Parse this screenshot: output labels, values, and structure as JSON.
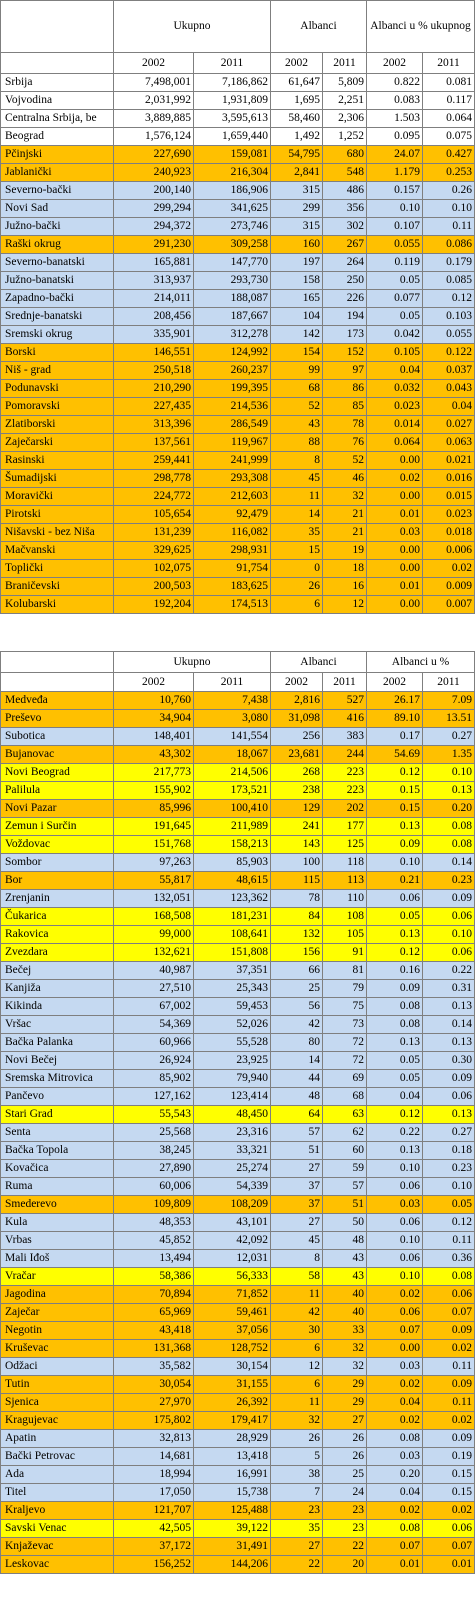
{
  "header": {
    "total": "Ukupno",
    "albanians": "Albanci",
    "share": "Albanci u % ukupnog",
    "share_short": "Albanci u %",
    "years": [
      "2002",
      "2011",
      "2002",
      "2011",
      "2002",
      "2011"
    ]
  },
  "table1": {
    "rows": [
      {
        "name": "Srbija",
        "t02": "7,498,001",
        "t11": "7,186,862",
        "a02": "61,647",
        "a11": "5,809",
        "p02": "0.822",
        "p11": "0.081",
        "color": "white"
      },
      {
        "name": "Vojvodina",
        "t02": "2,031,992",
        "t11": "1,931,809",
        "a02": "1,695",
        "a11": "2,251",
        "p02": "0.083",
        "p11": "0.117",
        "color": "white"
      },
      {
        "name": "Centralna Srbija, be",
        "t02": "3,889,885",
        "t11": "3,595,613",
        "a02": "58,460",
        "a11": "2,306",
        "p02": "1.503",
        "p11": "0.064",
        "color": "white"
      },
      {
        "name": "Beograd",
        "t02": "1,576,124",
        "t11": "1,659,440",
        "a02": "1,492",
        "a11": "1,252",
        "p02": "0.095",
        "p11": "0.075",
        "color": "white"
      },
      {
        "name": "Pčinjski",
        "t02": "227,690",
        "t11": "159,081",
        "a02": "54,795",
        "a11": "680",
        "p02": "24.07",
        "p11": "0.427",
        "color": "orange"
      },
      {
        "name": "Jablanički",
        "t02": "240,923",
        "t11": "216,304",
        "a02": "2,841",
        "a11": "548",
        "p02": "1.179",
        "p11": "0.253",
        "color": "orange"
      },
      {
        "name": "Severno-bački",
        "t02": "200,140",
        "t11": "186,906",
        "a02": "315",
        "a11": "486",
        "p02": "0.157",
        "p11": "0.26",
        "color": "blue"
      },
      {
        "name": "Novi Sad",
        "t02": "299,294",
        "t11": "341,625",
        "a02": "299",
        "a11": "356",
        "p02": "0.10",
        "p11": "0.10",
        "color": "blue"
      },
      {
        "name": "Južno-bački",
        "t02": "294,372",
        "t11": "273,746",
        "a02": "315",
        "a11": "302",
        "p02": "0.107",
        "p11": "0.11",
        "color": "blue"
      },
      {
        "name": "Raški okrug",
        "t02": "291,230",
        "t11": "309,258",
        "a02": "160",
        "a11": "267",
        "p02": "0.055",
        "p11": "0.086",
        "color": "orange"
      },
      {
        "name": "Severno-banatski",
        "t02": "165,881",
        "t11": "147,770",
        "a02": "197",
        "a11": "264",
        "p02": "0.119",
        "p11": "0.179",
        "color": "blue"
      },
      {
        "name": "Južno-banatski",
        "t02": "313,937",
        "t11": "293,730",
        "a02": "158",
        "a11": "250",
        "p02": "0.05",
        "p11": "0.085",
        "color": "blue"
      },
      {
        "name": "Zapadno-bački",
        "t02": "214,011",
        "t11": "188,087",
        "a02": "165",
        "a11": "226",
        "p02": "0.077",
        "p11": "0.12",
        "color": "blue"
      },
      {
        "name": "Srednje-banatski",
        "t02": "208,456",
        "t11": "187,667",
        "a02": "104",
        "a11": "194",
        "p02": "0.05",
        "p11": "0.103",
        "color": "blue"
      },
      {
        "name": "Sremski okrug",
        "t02": "335,901",
        "t11": "312,278",
        "a02": "142",
        "a11": "173",
        "p02": "0.042",
        "p11": "0.055",
        "color": "blue"
      },
      {
        "name": "Borski",
        "t02": "146,551",
        "t11": "124,992",
        "a02": "154",
        "a11": "152",
        "p02": "0.105",
        "p11": "0.122",
        "color": "orange"
      },
      {
        "name": "Niš - grad",
        "t02": "250,518",
        "t11": "260,237",
        "a02": "99",
        "a11": "97",
        "p02": "0.04",
        "p11": "0.037",
        "color": "orange"
      },
      {
        "name": "Podunavski",
        "t02": "210,290",
        "t11": "199,395",
        "a02": "68",
        "a11": "86",
        "p02": "0.032",
        "p11": "0.043",
        "color": "orange"
      },
      {
        "name": "Pomoravski",
        "t02": "227,435",
        "t11": "214,536",
        "a02": "52",
        "a11": "85",
        "p02": "0.023",
        "p11": "0.04",
        "color": "orange"
      },
      {
        "name": "Zlatiborski",
        "t02": "313,396",
        "t11": "286,549",
        "a02": "43",
        "a11": "78",
        "p02": "0.014",
        "p11": "0.027",
        "color": "orange"
      },
      {
        "name": "Zaječarski",
        "t02": "137,561",
        "t11": "119,967",
        "a02": "88",
        "a11": "76",
        "p02": "0.064",
        "p11": "0.063",
        "color": "orange"
      },
      {
        "name": "Rasinski",
        "t02": "259,441",
        "t11": "241,999",
        "a02": "8",
        "a11": "52",
        "p02": "0.00",
        "p11": "0.021",
        "color": "orange"
      },
      {
        "name": "Šumadijski",
        "t02": "298,778",
        "t11": "293,308",
        "a02": "45",
        "a11": "46",
        "p02": "0.02",
        "p11": "0.016",
        "color": "orange"
      },
      {
        "name": "Moravički",
        "t02": "224,772",
        "t11": "212,603",
        "a02": "11",
        "a11": "32",
        "p02": "0.00",
        "p11": "0.015",
        "color": "orange"
      },
      {
        "name": "Pirotski",
        "t02": "105,654",
        "t11": "92,479",
        "a02": "14",
        "a11": "21",
        "p02": "0.01",
        "p11": "0.023",
        "color": "orange"
      },
      {
        "name": "Nišavski - bez Niša",
        "t02": "131,239",
        "t11": "116,082",
        "a02": "35",
        "a11": "21",
        "p02": "0.03",
        "p11": "0.018",
        "color": "orange"
      },
      {
        "name": "Mačvanski",
        "t02": "329,625",
        "t11": "298,931",
        "a02": "15",
        "a11": "19",
        "p02": "0.00",
        "p11": "0.006",
        "color": "orange"
      },
      {
        "name": "Toplički",
        "t02": "102,075",
        "t11": "91,754",
        "a02": "0",
        "a11": "18",
        "p02": "0.00",
        "p11": "0.02",
        "color": "orange"
      },
      {
        "name": "Braničevski",
        "t02": "200,503",
        "t11": "183,625",
        "a02": "26",
        "a11": "16",
        "p02": "0.01",
        "p11": "0.009",
        "color": "orange"
      },
      {
        "name": "Kolubarski",
        "t02": "192,204",
        "t11": "174,513",
        "a02": "6",
        "a11": "12",
        "p02": "0.00",
        "p11": "0.007",
        "color": "orange"
      }
    ]
  },
  "table2": {
    "rows": [
      {
        "name": "Medveđa",
        "t02": "10,760",
        "t11": "7,438",
        "a02": "2,816",
        "a11": "527",
        "p02": "26.17",
        "p11": "7.09",
        "color": "orange"
      },
      {
        "name": "Preševo",
        "t02": "34,904",
        "t11": "3,080",
        "a02": "31,098",
        "a11": "416",
        "p02": "89.10",
        "p11": "13.51",
        "color": "orange"
      },
      {
        "name": "Subotica",
        "t02": "148,401",
        "t11": "141,554",
        "a02": "256",
        "a11": "383",
        "p02": "0.17",
        "p11": "0.27",
        "color": "blue"
      },
      {
        "name": "Bujanovac",
        "t02": "43,302",
        "t11": "18,067",
        "a02": "23,681",
        "a11": "244",
        "p02": "54.69",
        "p11": "1.35",
        "color": "orange"
      },
      {
        "name": "Novi Beograd",
        "t02": "217,773",
        "t11": "214,506",
        "a02": "268",
        "a11": "223",
        "p02": "0.12",
        "p11": "0.10",
        "color": "yellow"
      },
      {
        "name": "Palilula",
        "t02": "155,902",
        "t11": "173,521",
        "a02": "238",
        "a11": "223",
        "p02": "0.15",
        "p11": "0.13",
        "color": "yellow"
      },
      {
        "name": "Novi Pazar",
        "t02": "85,996",
        "t11": "100,410",
        "a02": "129",
        "a11": "202",
        "p02": "0.15",
        "p11": "0.20",
        "color": "orange"
      },
      {
        "name": "Zemun i Surčin",
        "t02": "191,645",
        "t11": "211,989",
        "a02": "241",
        "a11": "177",
        "p02": "0.13",
        "p11": "0.08",
        "color": "yellow"
      },
      {
        "name": "Voždovac",
        "t02": "151,768",
        "t11": "158,213",
        "a02": "143",
        "a11": "125",
        "p02": "0.09",
        "p11": "0.08",
        "color": "yellow"
      },
      {
        "name": "Sombor",
        "t02": "97,263",
        "t11": "85,903",
        "a02": "100",
        "a11": "118",
        "p02": "0.10",
        "p11": "0.14",
        "color": "blue"
      },
      {
        "name": "Bor",
        "t02": "55,817",
        "t11": "48,615",
        "a02": "115",
        "a11": "113",
        "p02": "0.21",
        "p11": "0.23",
        "color": "orange"
      },
      {
        "name": "Zrenjanin",
        "t02": "132,051",
        "t11": "123,362",
        "a02": "78",
        "a11": "110",
        "p02": "0.06",
        "p11": "0.09",
        "color": "blue"
      },
      {
        "name": "Čukarica",
        "t02": "168,508",
        "t11": "181,231",
        "a02": "84",
        "a11": "108",
        "p02": "0.05",
        "p11": "0.06",
        "color": "yellow"
      },
      {
        "name": "Rakovica",
        "t02": "99,000",
        "t11": "108,641",
        "a02": "132",
        "a11": "105",
        "p02": "0.13",
        "p11": "0.10",
        "color": "yellow"
      },
      {
        "name": "Zvezdara",
        "t02": "132,621",
        "t11": "151,808",
        "a02": "156",
        "a11": "91",
        "p02": "0.12",
        "p11": "0.06",
        "color": "yellow"
      },
      {
        "name": "Bečej",
        "t02": "40,987",
        "t11": "37,351",
        "a02": "66",
        "a11": "81",
        "p02": "0.16",
        "p11": "0.22",
        "color": "blue"
      },
      {
        "name": "Kanjiža",
        "t02": "27,510",
        "t11": "25,343",
        "a02": "25",
        "a11": "79",
        "p02": "0.09",
        "p11": "0.31",
        "color": "blue"
      },
      {
        "name": "Kikinda",
        "t02": "67,002",
        "t11": "59,453",
        "a02": "56",
        "a11": "75",
        "p02": "0.08",
        "p11": "0.13",
        "color": "blue"
      },
      {
        "name": "Vršac",
        "t02": "54,369",
        "t11": "52,026",
        "a02": "42",
        "a11": "73",
        "p02": "0.08",
        "p11": "0.14",
        "color": "blue"
      },
      {
        "name": "Bačka Palanka",
        "t02": "60,966",
        "t11": "55,528",
        "a02": "80",
        "a11": "72",
        "p02": "0.13",
        "p11": "0.13",
        "color": "blue"
      },
      {
        "name": "Novi Bečej",
        "t02": "26,924",
        "t11": "23,925",
        "a02": "14",
        "a11": "72",
        "p02": "0.05",
        "p11": "0.30",
        "color": "blue"
      },
      {
        "name": "Sremska Mitrovica",
        "t02": "85,902",
        "t11": "79,940",
        "a02": "44",
        "a11": "69",
        "p02": "0.05",
        "p11": "0.09",
        "color": "blue"
      },
      {
        "name": "Pančevo",
        "t02": "127,162",
        "t11": "123,414",
        "a02": "48",
        "a11": "68",
        "p02": "0.04",
        "p11": "0.06",
        "color": "blue"
      },
      {
        "name": "Stari Grad",
        "t02": "55,543",
        "t11": "48,450",
        "a02": "64",
        "a11": "63",
        "p02": "0.12",
        "p11": "0.13",
        "color": "yellow"
      },
      {
        "name": "Senta",
        "t02": "25,568",
        "t11": "23,316",
        "a02": "57",
        "a11": "62",
        "p02": "0.22",
        "p11": "0.27",
        "color": "blue"
      },
      {
        "name": "Bačka Topola",
        "t02": "38,245",
        "t11": "33,321",
        "a02": "51",
        "a11": "60",
        "p02": "0.13",
        "p11": "0.18",
        "color": "blue"
      },
      {
        "name": "Kovačica",
        "t02": "27,890",
        "t11": "25,274",
        "a02": "27",
        "a11": "59",
        "p02": "0.10",
        "p11": "0.23",
        "color": "blue"
      },
      {
        "name": "Ruma",
        "t02": "60,006",
        "t11": "54,339",
        "a02": "37",
        "a11": "57",
        "p02": "0.06",
        "p11": "0.10",
        "color": "blue"
      },
      {
        "name": "Smederevo",
        "t02": "109,809",
        "t11": "108,209",
        "a02": "37",
        "a11": "51",
        "p02": "0.03",
        "p11": "0.05",
        "color": "orange"
      },
      {
        "name": "Kula",
        "t02": "48,353",
        "t11": "43,101",
        "a02": "27",
        "a11": "50",
        "p02": "0.06",
        "p11": "0.12",
        "color": "blue"
      },
      {
        "name": "Vrbas",
        "t02": "45,852",
        "t11": "42,092",
        "a02": "45",
        "a11": "48",
        "p02": "0.10",
        "p11": "0.11",
        "color": "blue"
      },
      {
        "name": "Mali Iđoš",
        "t02": "13,494",
        "t11": "12,031",
        "a02": "8",
        "a11": "43",
        "p02": "0.06",
        "p11": "0.36",
        "color": "blue"
      },
      {
        "name": "Vračar",
        "t02": "58,386",
        "t11": "56,333",
        "a02": "58",
        "a11": "43",
        "p02": "0.10",
        "p11": "0.08",
        "color": "yellow"
      },
      {
        "name": "Jagodina",
        "t02": "70,894",
        "t11": "71,852",
        "a02": "11",
        "a11": "40",
        "p02": "0.02",
        "p11": "0.06",
        "color": "orange"
      },
      {
        "name": "Zaječar",
        "t02": "65,969",
        "t11": "59,461",
        "a02": "42",
        "a11": "40",
        "p02": "0.06",
        "p11": "0.07",
        "color": "orange"
      },
      {
        "name": "Negotin",
        "t02": "43,418",
        "t11": "37,056",
        "a02": "30",
        "a11": "33",
        "p02": "0.07",
        "p11": "0.09",
        "color": "orange"
      },
      {
        "name": "Kruševac",
        "t02": "131,368",
        "t11": "128,752",
        "a02": "6",
        "a11": "32",
        "p02": "0.00",
        "p11": "0.02",
        "color": "orange"
      },
      {
        "name": "Odžaci",
        "t02": "35,582",
        "t11": "30,154",
        "a02": "12",
        "a11": "32",
        "p02": "0.03",
        "p11": "0.11",
        "color": "blue"
      },
      {
        "name": "Tutin",
        "t02": "30,054",
        "t11": "31,155",
        "a02": "6",
        "a11": "29",
        "p02": "0.02",
        "p11": "0.09",
        "color": "orange"
      },
      {
        "name": "Sjenica",
        "t02": "27,970",
        "t11": "26,392",
        "a02": "11",
        "a11": "29",
        "p02": "0.04",
        "p11": "0.11",
        "color": "orange"
      },
      {
        "name": "Kragujevac",
        "t02": "175,802",
        "t11": "179,417",
        "a02": "32",
        "a11": "27",
        "p02": "0.02",
        "p11": "0.02",
        "color": "orange"
      },
      {
        "name": "Apatin",
        "t02": "32,813",
        "t11": "28,929",
        "a02": "26",
        "a11": "26",
        "p02": "0.08",
        "p11": "0.09",
        "color": "blue"
      },
      {
        "name": "Bački Petrovac",
        "t02": "14,681",
        "t11": "13,418",
        "a02": "5",
        "a11": "26",
        "p02": "0.03",
        "p11": "0.19",
        "color": "blue"
      },
      {
        "name": "Ada",
        "t02": "18,994",
        "t11": "16,991",
        "a02": "38",
        "a11": "25",
        "p02": "0.20",
        "p11": "0.15",
        "color": "blue"
      },
      {
        "name": "Titel",
        "t02": "17,050",
        "t11": "15,738",
        "a02": "7",
        "a11": "24",
        "p02": "0.04",
        "p11": "0.15",
        "color": "blue"
      },
      {
        "name": "Kraljevo",
        "t02": "121,707",
        "t11": "125,488",
        "a02": "23",
        "a11": "23",
        "p02": "0.02",
        "p11": "0.02",
        "color": "orange"
      },
      {
        "name": "Savski Venac",
        "t02": "42,505",
        "t11": "39,122",
        "a02": "35",
        "a11": "23",
        "p02": "0.08",
        "p11": "0.06",
        "color": "yellow"
      },
      {
        "name": "Knjaževac",
        "t02": "37,172",
        "t11": "31,491",
        "a02": "27",
        "a11": "22",
        "p02": "0.07",
        "p11": "0.07",
        "color": "orange"
      },
      {
        "name": "Leskovac",
        "t02": "156,252",
        "t11": "144,206",
        "a02": "22",
        "a11": "20",
        "p02": "0.01",
        "p11": "0.01",
        "color": "orange"
      }
    ]
  }
}
